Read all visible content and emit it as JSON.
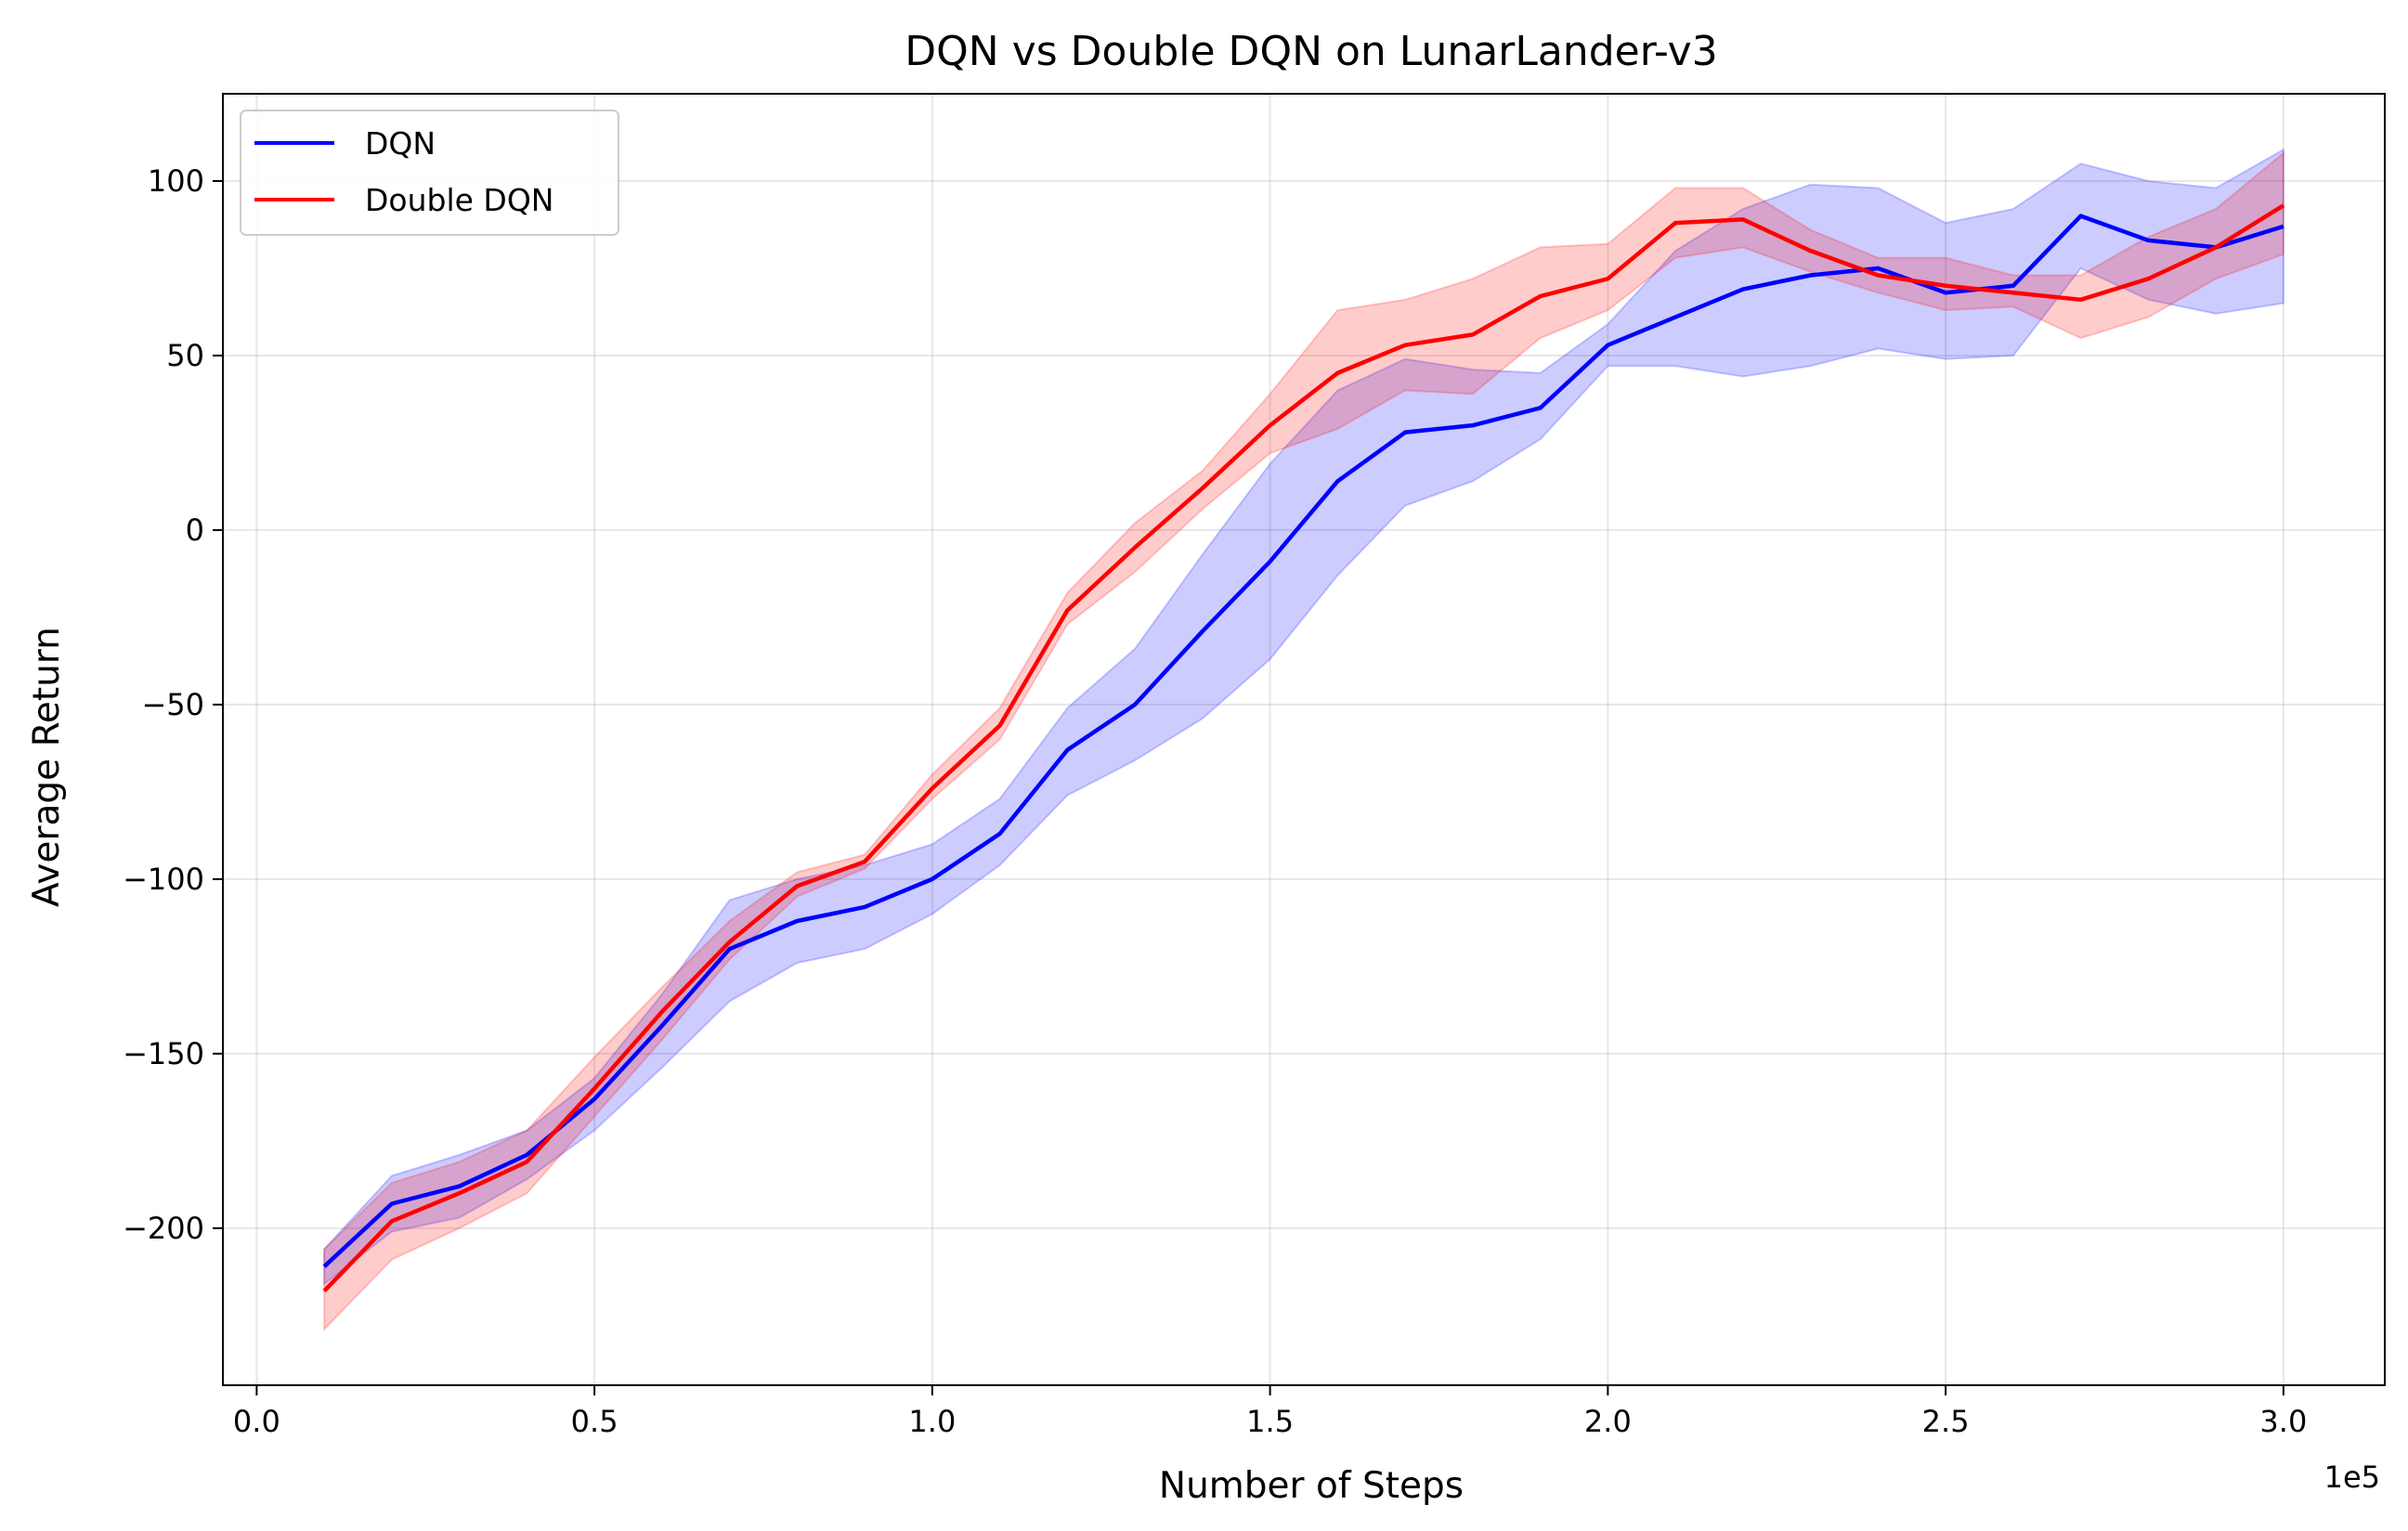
{
  "chart_data": {
    "type": "line",
    "title": "DQN vs Double DQN on LunarLander-v3",
    "xlabel": "Number of Steps",
    "ylabel": "Average Return",
    "x_offset_label": "1e5",
    "xlim": [
      -0.05,
      3.15
    ],
    "ylim": [
      -245,
      125
    ],
    "xticks": [
      0.0,
      0.5,
      1.0,
      1.5,
      2.0,
      2.5,
      3.0
    ],
    "xtick_labels": [
      "0.0",
      "0.5",
      "1.0",
      "1.5",
      "2.0",
      "2.5",
      "3.0"
    ],
    "yticks": [
      100,
      50,
      0,
      -50,
      -100,
      -150,
      -200
    ],
    "ytick_labels": [
      "100",
      "50",
      "0",
      "−50",
      "−100",
      "−150",
      "−200"
    ],
    "grid": true,
    "legend_position": "top-left",
    "x": [
      0.1,
      0.2,
      0.3,
      0.4,
      0.5,
      0.6,
      0.7,
      0.8,
      0.9,
      1.0,
      1.1,
      1.2,
      1.3,
      1.4,
      1.5,
      1.6,
      1.7,
      1.8,
      1.9,
      2.0,
      2.1,
      2.2,
      2.3,
      2.4,
      2.5,
      2.6,
      2.7,
      2.8,
      2.9,
      3.0
    ],
    "series": [
      {
        "name": "DQN",
        "color": "#0000ff",
        "band_color": "#0000ff",
        "values": [
          -211,
          -193,
          -188,
          -179,
          -163,
          -142,
          -120,
          -112,
          -108,
          -100,
          -87,
          -63,
          -50,
          -29,
          -9,
          14,
          28,
          30,
          35,
          53,
          61,
          69,
          73,
          75,
          68,
          70,
          90,
          83,
          81,
          87
        ],
        "upper": [
          -206,
          -185,
          -179,
          -172,
          -157,
          -133,
          -106,
          -100,
          -96,
          -90,
          -77,
          -51,
          -34,
          -7,
          19,
          40,
          49,
          46,
          45,
          59,
          80,
          92,
          99,
          98,
          88,
          92,
          105,
          100,
          98,
          109
        ],
        "lower": [
          -216,
          -201,
          -197,
          -186,
          -172,
          -154,
          -135,
          -124,
          -120,
          -110,
          -96,
          -76,
          -66,
          -54,
          -37,
          -13,
          7,
          14,
          26,
          47,
          47,
          44,
          47,
          52,
          49,
          50,
          75,
          66,
          62,
          65
        ]
      },
      {
        "name": "Double DQN",
        "color": "#ff0000",
        "band_color": "#ff0000",
        "values": [
          -218,
          -198,
          -190,
          -181,
          -160,
          -138,
          -118,
          -102,
          -95,
          -74,
          -56,
          -23,
          -5,
          12,
          30,
          45,
          53,
          56,
          67,
          72,
          88,
          89,
          80,
          73,
          70,
          68,
          66,
          72,
          81,
          93
        ],
        "upper": [
          -206,
          -187,
          -181,
          -172,
          -151,
          -131,
          -112,
          -98,
          -93,
          -70,
          -51,
          -18,
          2,
          17,
          39,
          63,
          66,
          72,
          81,
          82,
          98,
          98,
          86,
          78,
          78,
          73,
          73,
          84,
          92,
          108
        ],
        "lower": [
          -229,
          -209,
          -200,
          -190,
          -168,
          -146,
          -123,
          -105,
          -97,
          -77,
          -60,
          -27,
          -12,
          6,
          22,
          29,
          40,
          39,
          55,
          63,
          78,
          81,
          74,
          68,
          63,
          64,
          55,
          61,
          72,
          79
        ]
      }
    ]
  }
}
